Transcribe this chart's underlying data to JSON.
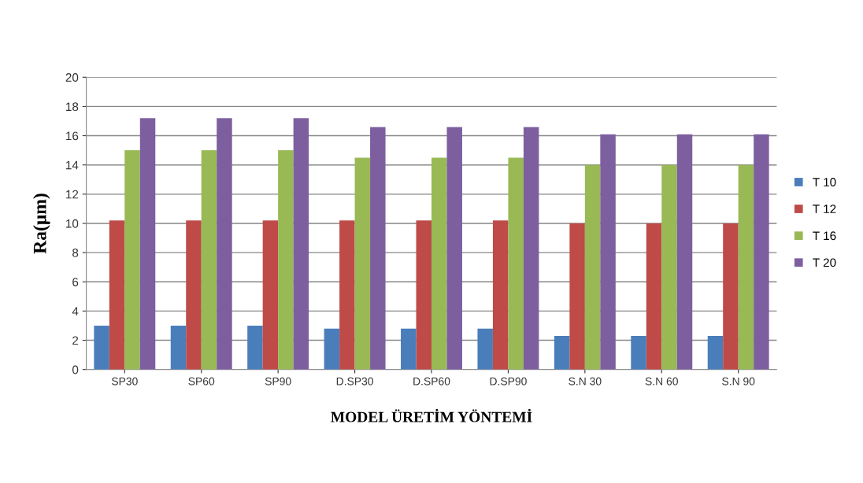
{
  "chart_data": {
    "type": "bar",
    "xlabel": "MODEL ÜRETİM YÖNTEMİ",
    "ylabel": "Ra(μm)",
    "categories": [
      "SP30",
      "SP60",
      "SP90",
      "D.SP30",
      "D.SP60",
      "D.SP90",
      "S.N 30",
      "S.N 60",
      "S.N 90"
    ],
    "series": [
      {
        "name": "T 10",
        "color": "#4a7ebb",
        "values": [
          3.0,
          3.0,
          3.0,
          2.8,
          2.8,
          2.8,
          2.3,
          2.3,
          2.3
        ]
      },
      {
        "name": "T 12",
        "color": "#be4b48",
        "values": [
          10.2,
          10.2,
          10.2,
          10.2,
          10.2,
          10.2,
          10.0,
          10.0,
          10.0
        ]
      },
      {
        "name": "T 16",
        "color": "#98b954",
        "values": [
          15.0,
          15.0,
          15.0,
          14.5,
          14.5,
          14.5,
          14.0,
          14.0,
          14.0
        ]
      },
      {
        "name": "T 20",
        "color": "#7d5fa0",
        "values": [
          17.2,
          17.2,
          17.2,
          16.6,
          16.6,
          16.6,
          16.1,
          16.1,
          16.1
        ]
      }
    ],
    "ylim": [
      0,
      20
    ],
    "yticks": [
      0,
      2,
      4,
      6,
      8,
      10,
      12,
      14,
      16,
      18,
      20
    ],
    "grid": "y",
    "legend": "right"
  }
}
